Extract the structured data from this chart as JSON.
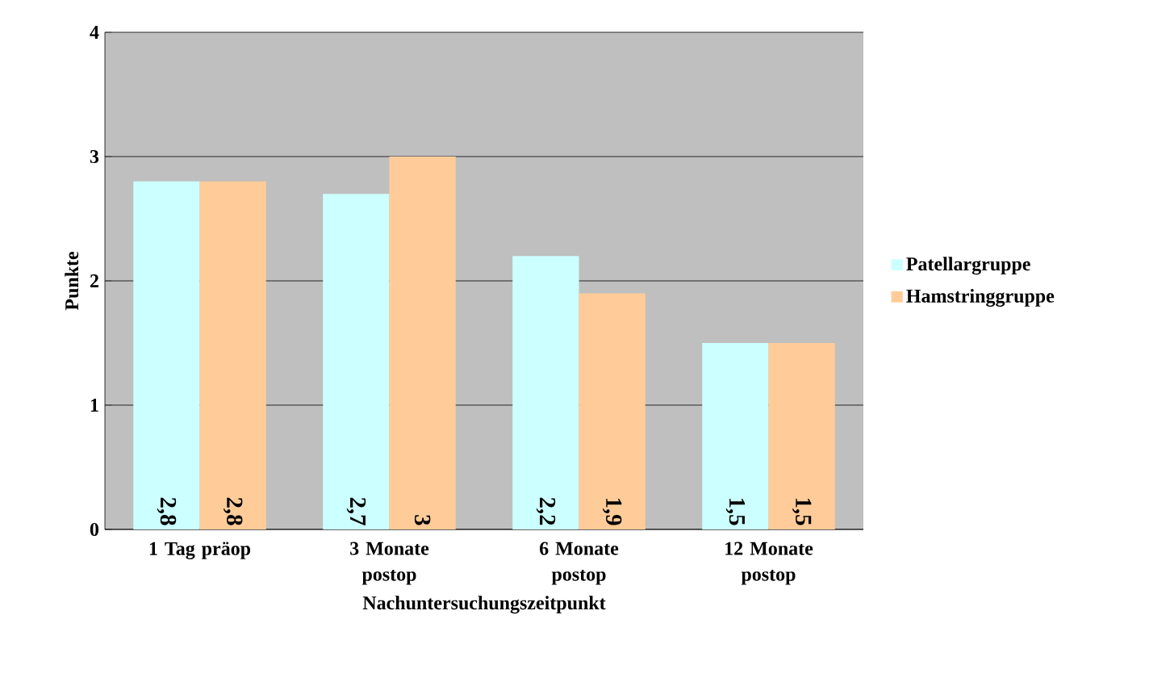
{
  "chart_data": {
    "type": "bar",
    "xlabel": "Nachuntersuchungszeitpunkt",
    "ylabel": "Punkte",
    "categories": [
      "1 Tag präop",
      "3 Monate postop",
      "6 Monate postop",
      "12 Monate postop"
    ],
    "series": [
      {
        "name": "Patellargruppe",
        "color": "#ccffff",
        "values": [
          2.8,
          2.7,
          2.2,
          1.5
        ],
        "value_labels": [
          "2,8",
          "2,7",
          "2,2",
          "1,5"
        ]
      },
      {
        "name": "Hamstringgruppe",
        "color": "#ffcc99",
        "values": [
          2.8,
          3,
          1.9,
          1.5
        ],
        "value_labels": [
          "2,8",
          "3",
          "1,9",
          "1,5"
        ]
      }
    ],
    "ylim": [
      0,
      4
    ],
    "yticks": [
      0,
      1,
      2,
      3,
      4
    ],
    "grid": "y",
    "legend": "right"
  }
}
